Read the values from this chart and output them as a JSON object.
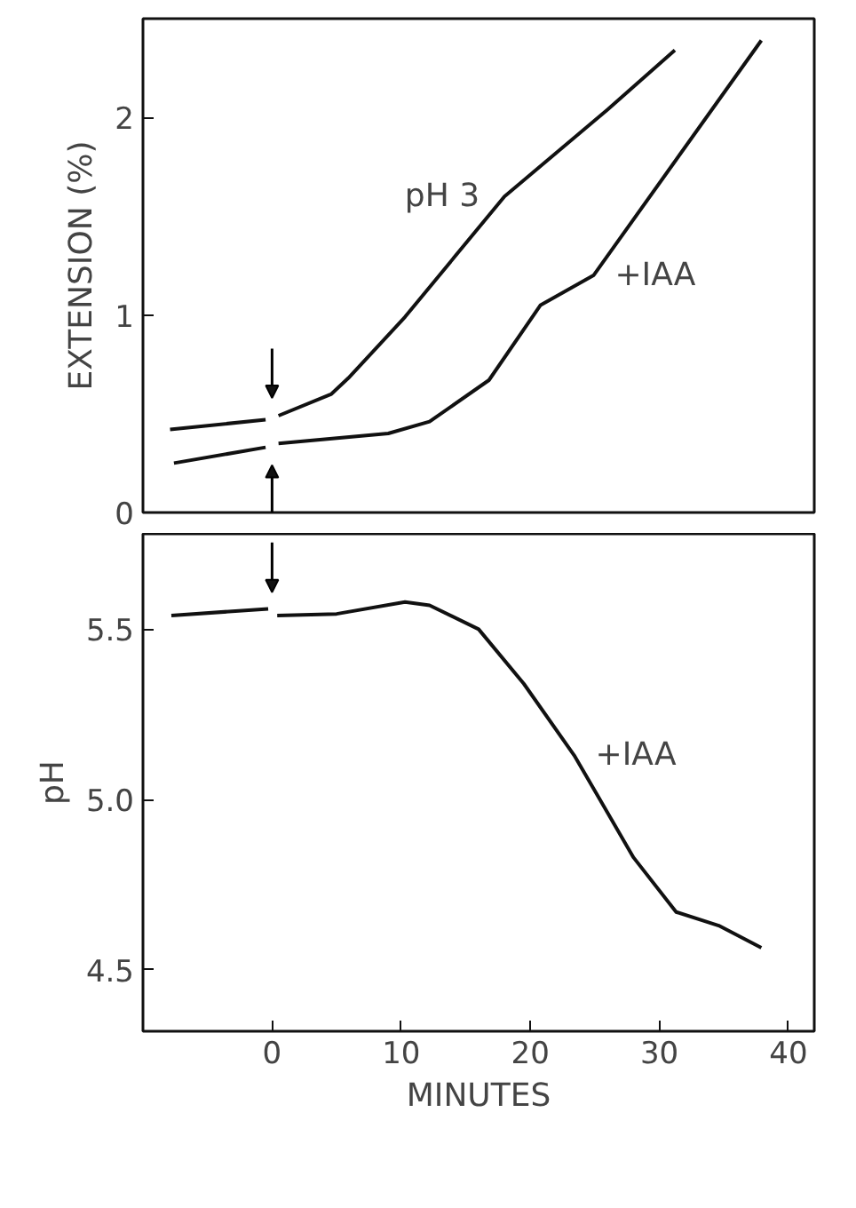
{
  "chart_data": [
    {
      "type": "line",
      "ylabel": "EXTENSION (%)",
      "xlim": [
        -10,
        42
      ],
      "ylim": [
        0,
        2.5
      ],
      "yticks": [
        0,
        1,
        2
      ],
      "tick_labels": "y",
      "grid": false,
      "marker": "none",
      "line_style": "solid",
      "series": [
        {
          "name": "pH 3",
          "color": "#111111",
          "x": [
            -7.9,
            -0.5,
            0,
            0.5,
            4.6,
            5.9,
            10.3,
            18,
            26,
            31.2
          ],
          "values": [
            0.42,
            0.47,
            null,
            0.49,
            0.6,
            0.68,
            0.99,
            1.6,
            2.04,
            2.34
          ]
        },
        {
          "name": "+IAA",
          "color": "#111111",
          "x": [
            -7.6,
            -0.5,
            0,
            0.5,
            9,
            12.2,
            16.8,
            20.8,
            24.9,
            37.9
          ],
          "values": [
            0.25,
            0.33,
            null,
            0.35,
            0.4,
            0.46,
            0.67,
            1.05,
            1.2,
            2.39
          ]
        }
      ]
    },
    {
      "type": "line",
      "xlabel": "MINUTES",
      "ylabel": "pH",
      "xlim": [
        -10,
        42
      ],
      "xticks": [
        0,
        10,
        20,
        30,
        40
      ],
      "ylim": [
        4.32,
        5.78
      ],
      "yticks": [
        {
          "value": 4.5,
          "label": "4.5"
        },
        {
          "value": 5.0,
          "label": "5.0"
        },
        {
          "value": 5.5,
          "label": "5.5"
        }
      ],
      "grid": false,
      "marker": "none",
      "line_style": "solid",
      "series": [
        {
          "name": "+IAA",
          "color": "#111111",
          "x": [
            -7.8,
            -0.3,
            0,
            0.4,
            5,
            10.3,
            12.2,
            16,
            19.5,
            23.4,
            25.4,
            28,
            31.3,
            34.6,
            37.9
          ],
          "values": [
            5.54,
            5.56,
            null,
            5.54,
            5.545,
            5.58,
            5.57,
            5.5,
            5.34,
            5.13,
            5.0,
            4.83,
            4.67,
            4.63,
            4.565
          ]
        }
      ]
    }
  ]
}
